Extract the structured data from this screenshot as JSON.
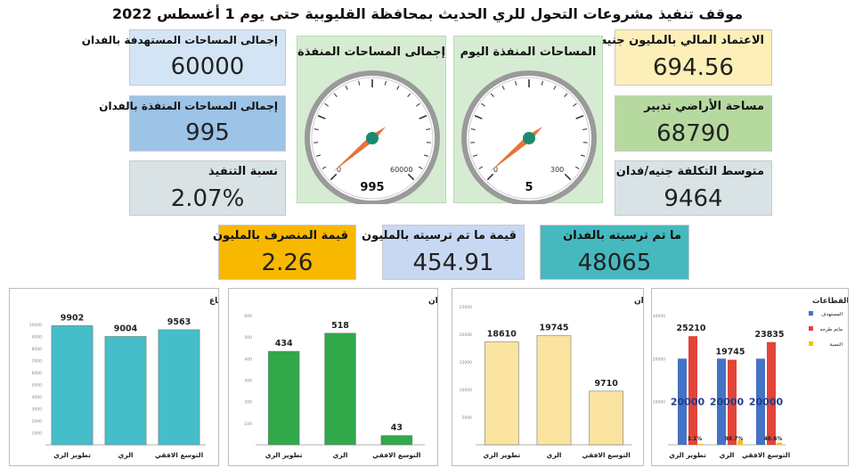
{
  "title": "موقف تنفيذ مشروعات التحول للري الحديث بمحافظة القليوبية حتى يوم 1 أغسطس 2022",
  "kpis": {
    "target_area": {
      "label": "إجمالى المساحات المستهدفة بالفدان",
      "value": "60000"
    },
    "executed_area": {
      "label": "إجمالى المساحات المنفذة بالفدان",
      "value": "995"
    },
    "execution_ratio": {
      "label": "نسبة التنفيذ",
      "value": "2.07%"
    },
    "budget": {
      "label": "الاعتماد المالي بالمليون جنيه",
      "value": "694.56"
    },
    "land_area": {
      "label": "مساحة الأراضي تدبير",
      "value": "68790"
    },
    "avg_cost": {
      "label": "متوسط التكلفة جنيه/فدان",
      "value": "9464"
    },
    "spent": {
      "label": "قيمة المنصرف بالمليون",
      "value": "2.26"
    },
    "awarded_value": {
      "label": "قيمة ما تم ترسيته بالمليون",
      "value": "454.91"
    },
    "awarded_area": {
      "label": "ما تم ترسيته بالفدان",
      "value": "48065"
    }
  },
  "colors": {
    "teal": "#45bec9",
    "green": "#31a84a",
    "sand": "#fbe3a0",
    "blue": "#4472c4",
    "red": "#e2443a",
    "yellow": "#f5c018",
    "box_blue_light": "#d3e5f5",
    "box_blue": "#9dc3e6",
    "box_grey": "#d9e3e6",
    "box_yellow": "#fdefb8",
    "box_green": "#b6d9a0",
    "box_orange": "#f8b800",
    "box_lavender": "#c9d8f2",
    "box_teal": "#46b9bf",
    "needle": "#e8743b",
    "hub": "#1c8a6e"
  },
  "gauges": [
    {
      "label": "إجمالى المساحات المنفذة",
      "min": "0",
      "max": "60000",
      "value": 995,
      "value_text": "995"
    },
    {
      "label": "المساحات المنفذة اليوم",
      "min": "0",
      "max": "300",
      "value": 5,
      "value_text": "5"
    }
  ],
  "chart_data": [
    {
      "type": "bar",
      "title": "متوسط التكلفة للفدان بكل قطاع",
      "categories": [
        "تطوير الري",
        "الري",
        "التوسع الافقي"
      ],
      "values": [
        9902,
        9004,
        9563
      ],
      "value_labels": [
        "9902",
        "9004",
        "9563"
      ],
      "ylim": [
        0,
        10000
      ],
      "yticks": [
        "1000",
        "2000",
        "3000",
        "4000",
        "5000",
        "6000",
        "7000",
        "8000",
        "9000",
        "10000"
      ],
      "color": "#45bec9"
    },
    {
      "type": "bar",
      "title": "إجمالى المنفذ بكل قطاع بالفدان",
      "categories": [
        "تطوير الري",
        "الري",
        "التوسع الافقي"
      ],
      "values": [
        434,
        518,
        43
      ],
      "value_labels": [
        "434",
        "518",
        "43"
      ],
      "ylim": [
        0,
        600
      ],
      "yticks": [
        "100",
        "200",
        "300",
        "400",
        "500",
        "600"
      ],
      "color": "#31a84a"
    },
    {
      "type": "bar",
      "title": "إجمالى ما تم ترسيته بالفدان",
      "categories": [
        "تطوير الري",
        "الري",
        "التوسع الافقي"
      ],
      "values": [
        18610,
        19745,
        9710
      ],
      "value_labels": [
        "18610",
        "19745",
        "9710"
      ],
      "ylim": [
        0,
        25000
      ],
      "yticks": [
        "5000",
        "10000",
        "15000",
        "20000",
        "25000"
      ],
      "color": "#fbe3a0"
    },
    {
      "type": "bar",
      "title": "المستهدف وماتم طرحه بالقطاعات",
      "categories": [
        "تطوير الري",
        "الري",
        "التوسع الافقي"
      ],
      "series": [
        {
          "name": "المستهدف",
          "values": [
            20000,
            20000,
            20000
          ],
          "labels": [
            "20000",
            "20000",
            "20000"
          ],
          "color": "#4472c4"
        },
        {
          "name": "ماتم طرحه",
          "values": [
            25210,
            19745,
            23835
          ],
          "labels": [
            "25210",
            "19745",
            "23835"
          ],
          "color": "#e2443a"
        },
        {
          "name": "النسبة",
          "values": [
            3.1,
            98.7,
            48.6
          ],
          "labels": [
            "3.1%",
            "98.7%",
            "48.6%"
          ],
          "color": "#f5c018"
        }
      ],
      "ylim": [
        0,
        30000
      ],
      "yticks": [
        "10000",
        "20000",
        "30000"
      ],
      "legend_position": "right"
    }
  ]
}
